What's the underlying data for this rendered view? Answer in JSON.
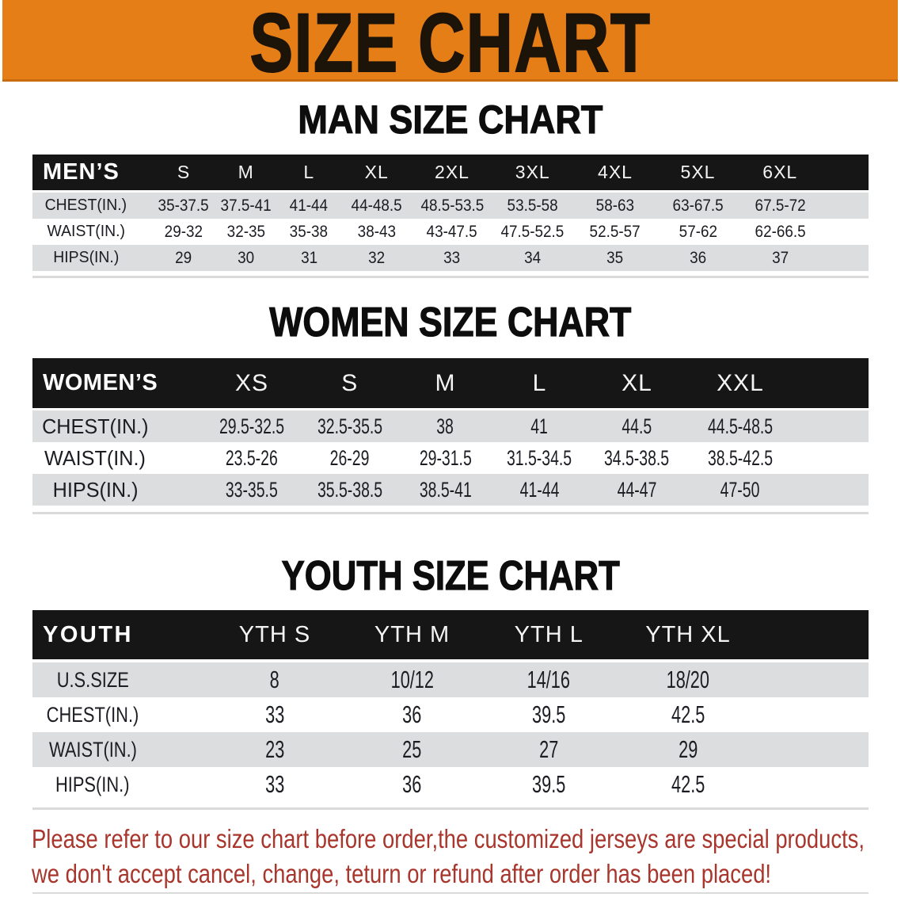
{
  "banner": {
    "title": "SIZE CHART"
  },
  "sections": [
    {
      "heading": "MAN SIZE CHART",
      "table": {
        "header_label": "MEN’S",
        "columns": [
          "S",
          "M",
          "L",
          "XL",
          "2XL",
          "3XL",
          "4XL",
          "5XL",
          "6XL"
        ],
        "rows": [
          {
            "label": "CHEST(IN.)",
            "values": [
              "35-37.5",
              "37.5-41",
              "41-44",
              "44-48.5",
              "48.5-53.5",
              "53.5-58",
              "58-63",
              "63-67.5",
              "67.5-72"
            ]
          },
          {
            "label": "WAIST(IN.)",
            "values": [
              "29-32",
              "32-35",
              "35-38",
              "38-43",
              "43-47.5",
              "47.5-52.5",
              "52.5-57",
              "57-62",
              "62-66.5"
            ]
          },
          {
            "label": "HIPS(IN.)",
            "values": [
              "29",
              "30",
              "31",
              "32",
              "33",
              "34",
              "35",
              "36",
              "37"
            ]
          }
        ]
      }
    },
    {
      "heading": "WOMEN SIZE CHART",
      "table": {
        "header_label": "WOMEN’S",
        "columns": [
          "XS",
          "S",
          "M",
          "L",
          "XL",
          "XXL"
        ],
        "rows": [
          {
            "label": "CHEST(IN.)",
            "values": [
              "29.5-32.5",
              "32.5-35.5",
              "38",
              "41",
              "44.5",
              "44.5-48.5"
            ]
          },
          {
            "label": "WAIST(IN.)",
            "values": [
              "23.5-26",
              "26-29",
              "29-31.5",
              "31.5-34.5",
              "34.5-38.5",
              "38.5-42.5"
            ]
          },
          {
            "label": "HIPS(IN.)",
            "values": [
              "33-35.5",
              "35.5-38.5",
              "38.5-41",
              "41-44",
              "44-47",
              "47-50"
            ]
          }
        ]
      }
    },
    {
      "heading": "YOUTH SIZE CHART",
      "table": {
        "header_label": "YOUTH",
        "columns": [
          "YTH S",
          "YTH M",
          "YTH L",
          "YTH XL"
        ],
        "rows": [
          {
            "label": "U.S.SIZE",
            "values": [
              "8",
              "10/12",
              "14/16",
              "18/20"
            ]
          },
          {
            "label": "CHEST(IN.)",
            "values": [
              "33",
              "36",
              "39.5",
              "42.5"
            ]
          },
          {
            "label": "WAIST(IN.)",
            "values": [
              "23",
              "25",
              "27",
              "29"
            ]
          },
          {
            "label": "HIPS(IN.)",
            "values": [
              "33",
              "36",
              "39.5",
              "42.5"
            ]
          }
        ]
      }
    }
  ],
  "footnote": {
    "line1": "Please refer to our size chart before order,the customized jerseys are special products,",
    "line2": "we don't accept cancel, change, teturn or refund after order has been placed!"
  },
  "colors": {
    "banner_orange": "#e67e17",
    "banner_edge": "#c96c10",
    "bar_black": "#161616",
    "row_gray": "#dcddde",
    "footnote_red": "#a8362c"
  }
}
